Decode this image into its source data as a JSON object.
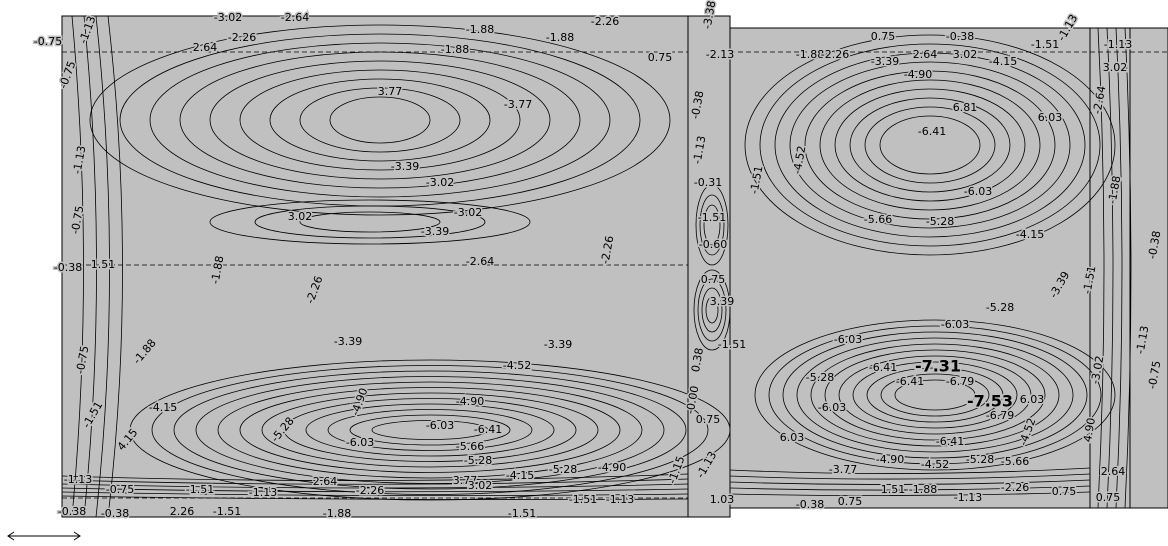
{
  "contour_labels": [
    "-0.75",
    "-1.13",
    "-3.02",
    "-2.64",
    "-2.26",
    "2.64",
    "-1.88",
    "-1.88",
    "-1.88",
    "-2.26",
    "0.75",
    "-0.75",
    "3.77",
    "-3.77",
    "-3.39",
    "-3.02",
    "-1.13",
    "-0.75",
    "3.02",
    "-3.02",
    "-3.39",
    "-2.64",
    "-0.38",
    "1.51",
    "-1.88",
    "-2.26",
    "-2.26",
    "-3.39",
    "-3.39",
    "-1.88",
    "-0.75",
    "-4.52",
    "-4.15",
    "-4.90",
    "-4.90",
    "-1.51",
    "-6.03",
    "-6.41",
    "4.15",
    "-5.28",
    "-6.03",
    "-5.66",
    "-5.28",
    "-4.90",
    "-4.15",
    "-5.28",
    "3.77",
    "3.02",
    "2.64",
    "-2.26",
    "-1.51",
    "-1.13",
    "-0.75",
    "-1.13",
    "-0.38",
    "-0.38",
    "2.26",
    "-1.51",
    "-1.88",
    "-1.51",
    "-1.51",
    "-1.13",
    "-3.38",
    "-2.13",
    "-0.38",
    "-1.13",
    "-0.31",
    "-1.51",
    "-0.60",
    "0.75",
    "3.39",
    "-1.51",
    "0.38",
    "-0.00",
    "0.75",
    "-1.13",
    "-1.15",
    "1.03",
    "-1.88",
    "-2.26",
    "-3.39",
    "2.64",
    "3.02",
    "-4.15",
    "-4.90",
    "0.75",
    "-0.38",
    "-1.51",
    "-1.13",
    "-6.41",
    "6.81",
    "6.03",
    "-4.52",
    "-1.51",
    "-6.03",
    "-5.66",
    "-5.28",
    "-4.15",
    "-3.39",
    "-5.28",
    "-6.03",
    "-6.03",
    "-6.41",
    "-6.79",
    "6.03",
    "-6.41",
    "-5.28",
    "-6.03",
    "6.03",
    "-6.41",
    "-6.79",
    "-4.52",
    "-3.77",
    "-4.90",
    "-4.52",
    "-5.28",
    "-5.66",
    "1.51",
    "-1.88",
    "-1.13",
    "-2.26",
    "0.75",
    "-0.38",
    "0.75",
    "0.75",
    "-1.13",
    "3.02",
    "-2.64",
    "-1.88",
    "-0.38",
    "-1.13",
    "-0.75",
    "-3.02",
    "-1.51",
    "4.90",
    "2.64"
  ],
  "peak_labels": [
    "-7.31",
    "-7.53"
  ]
}
